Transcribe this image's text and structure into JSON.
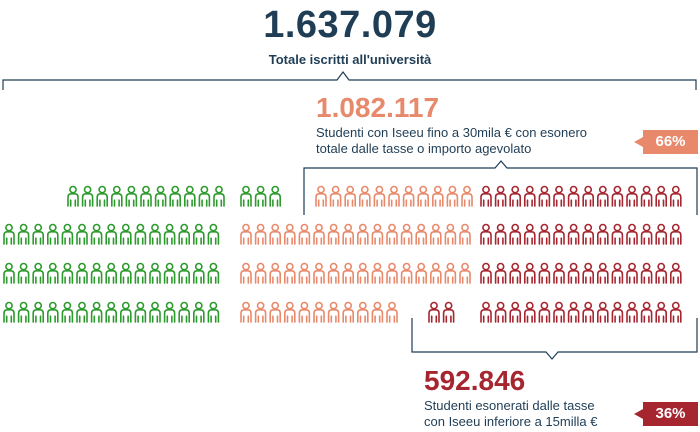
{
  "total": {
    "value": "1.637.079",
    "label": "Totale iscritti all'università"
  },
  "agevolati": {
    "value": "1.082.117",
    "label_line1": "Studenti con Iseeu fino a 30mila € con esonero",
    "label_line2": "totale dalle tasse o importo agevolato",
    "share": "66%"
  },
  "esonerati": {
    "value": "592.846",
    "label_line1": "Studenti esonerati dalle tasse",
    "label_line2": "con Iseeu inferiore a 15milla €",
    "share": "36%"
  },
  "colors": {
    "dark": "#1f3d55",
    "green": "#2c9a2c",
    "salmon": "#e8896b",
    "red": "#a62630"
  },
  "icon": "person-icon"
}
